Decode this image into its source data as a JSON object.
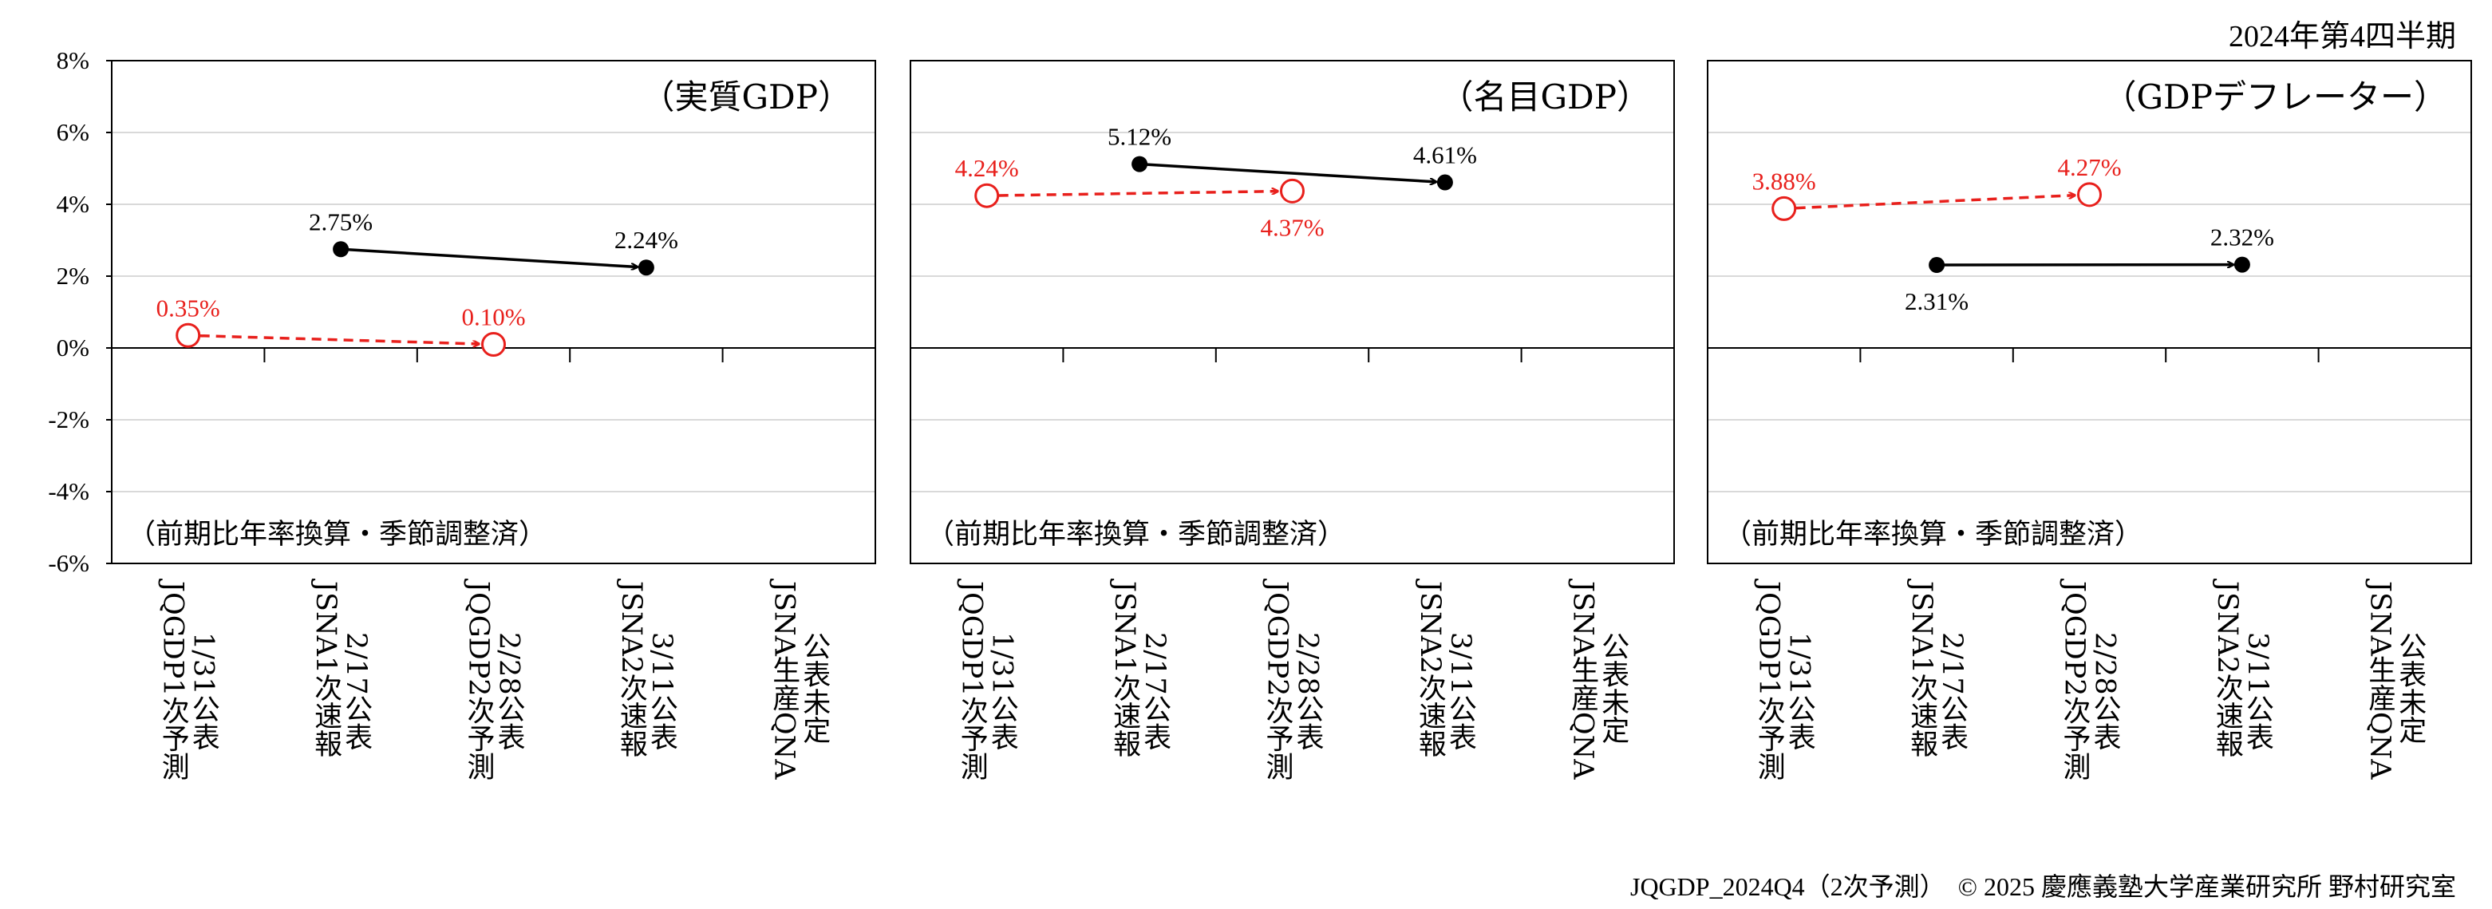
{
  "header": {
    "period": "2024年第4四半期"
  },
  "footer": {
    "source": "JQGDP_2024Q4（2次予測）　© 2025 慶應義塾大学産業研究所 野村研究室"
  },
  "colors": {
    "forecast": "#e8201c",
    "official": "#000000",
    "grid": "#d9d9d9"
  },
  "chart_data": [
    {
      "type": "line",
      "title": "（実質GDP）",
      "note": "（前期比年率換算・季節調整済）",
      "categories": [
        [
          "1/31公表",
          "JQGDP1次予測"
        ],
        [
          "2/17公表",
          "JSNA1次速報"
        ],
        [
          "2/28公表",
          "JQGDP2次予測"
        ],
        [
          "3/11公表",
          "JSNA2次速報"
        ],
        [
          "公表未定",
          "JSNA生産QNA"
        ]
      ],
      "ylim": [
        -6,
        8
      ],
      "yticks": [
        8,
        6,
        4,
        2,
        0,
        -2,
        -4,
        -6
      ],
      "ytick_labels": [
        "8%",
        "6%",
        "4%",
        "2%",
        "0%",
        "-2%",
        "-4%",
        "-6%"
      ],
      "grid": true,
      "series": [
        {
          "role": "forecast",
          "style": "dashed",
          "marker": "open-circle",
          "points": [
            {
              "category_index": 0,
              "value": 0.35,
              "label": "0.35%",
              "label_pos": "above"
            },
            {
              "category_index": 2,
              "value": 0.1,
              "label": "0.10%",
              "label_pos": "above"
            }
          ]
        },
        {
          "role": "official",
          "style": "solid",
          "marker": "filled-circle",
          "points": [
            {
              "category_index": 1,
              "value": 2.75,
              "label": "2.75%",
              "label_pos": "above"
            },
            {
              "category_index": 3,
              "value": 2.24,
              "label": "2.24%",
              "label_pos": "above"
            }
          ]
        }
      ]
    },
    {
      "type": "line",
      "title": "（名目GDP）",
      "note": "（前期比年率換算・季節調整済）",
      "categories": [
        [
          "1/31公表",
          "JQGDP1次予測"
        ],
        [
          "2/17公表",
          "JSNA1次速報"
        ],
        [
          "2/28公表",
          "JQGDP2次予測"
        ],
        [
          "3/11公表",
          "JSNA2次速報"
        ],
        [
          "公表未定",
          "JSNA生産QNA"
        ]
      ],
      "ylim": [
        -6,
        8
      ],
      "grid": true,
      "series": [
        {
          "role": "forecast",
          "style": "dashed",
          "marker": "open-circle",
          "points": [
            {
              "category_index": 0,
              "value": 4.24,
              "label": "4.24%",
              "label_pos": "above"
            },
            {
              "category_index": 2,
              "value": 4.37,
              "label": "4.37%",
              "label_pos": "below"
            }
          ]
        },
        {
          "role": "official",
          "style": "solid",
          "marker": "filled-circle",
          "points": [
            {
              "category_index": 1,
              "value": 5.12,
              "label": "5.12%",
              "label_pos": "above"
            },
            {
              "category_index": 3,
              "value": 4.61,
              "label": "4.61%",
              "label_pos": "above"
            }
          ]
        }
      ]
    },
    {
      "type": "line",
      "title": "（GDPデフレーター）",
      "note": "（前期比年率換算・季節調整済）",
      "categories": [
        [
          "1/31公表",
          "JQGDP1次予測"
        ],
        [
          "2/17公表",
          "JSNA1次速報"
        ],
        [
          "2/28公表",
          "JQGDP2次予測"
        ],
        [
          "3/11公表",
          "JSNA2次速報"
        ],
        [
          "公表未定",
          "JSNA生産QNA"
        ]
      ],
      "ylim": [
        -6,
        8
      ],
      "grid": true,
      "series": [
        {
          "role": "forecast",
          "style": "dashed",
          "marker": "open-circle",
          "points": [
            {
              "category_index": 0,
              "value": 3.88,
              "label": "3.88%",
              "label_pos": "above"
            },
            {
              "category_index": 2,
              "value": 4.27,
              "label": "4.27%",
              "label_pos": "above"
            }
          ]
        },
        {
          "role": "official",
          "style": "solid",
          "marker": "filled-circle",
          "points": [
            {
              "category_index": 1,
              "value": 2.31,
              "label": "2.31%",
              "label_pos": "below"
            },
            {
              "category_index": 3,
              "value": 2.32,
              "label": "2.32%",
              "label_pos": "above"
            }
          ]
        }
      ]
    }
  ]
}
